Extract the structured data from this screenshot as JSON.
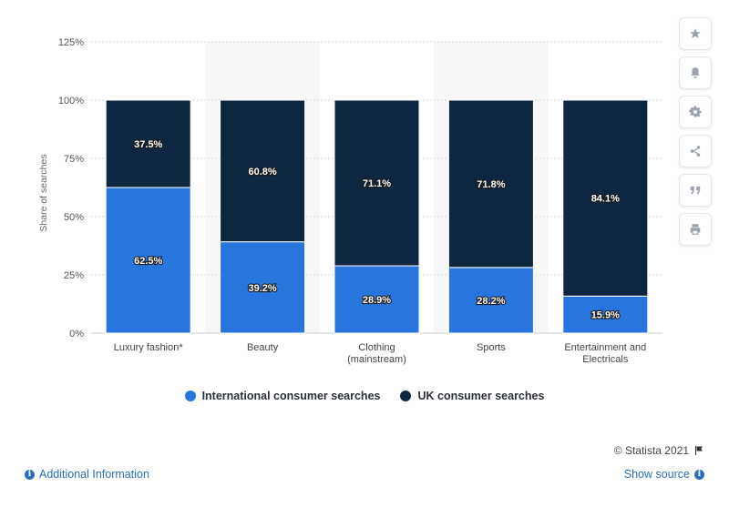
{
  "chart_data": {
    "type": "bar",
    "stacked": true,
    "categories": [
      "Luxury fashion*",
      "Beauty",
      "Clothing (mainstream)",
      "Sports",
      "Entertainment and Electricals"
    ],
    "category_lines": [
      [
        "Luxury fashion*"
      ],
      [
        "Beauty"
      ],
      [
        "Clothing",
        "(mainstream)"
      ],
      [
        "Sports"
      ],
      [
        "Entertainment and",
        "Electricals"
      ]
    ],
    "series": [
      {
        "name": "International consumer searches",
        "color": "#2876dd",
        "values": [
          62.5,
          39.2,
          28.9,
          28.2,
          15.9
        ]
      },
      {
        "name": "UK consumer searches",
        "color": "#0f2640",
        "values": [
          37.5,
          60.8,
          71.1,
          71.8,
          84.1
        ]
      }
    ],
    "value_labels": [
      [
        "62.5%",
        "39.2%",
        "28.9%",
        "28.2%",
        "15.9%"
      ],
      [
        "37.5%",
        "60.8%",
        "71.1%",
        "71.8%",
        "84.1%"
      ]
    ],
    "ylabel": "Share of searches",
    "ylim": [
      0,
      125
    ],
    "yticks": [
      0,
      25,
      50,
      75,
      100,
      125
    ],
    "ytick_labels": [
      "0%",
      "25%",
      "50%",
      "75%",
      "100%",
      "125%"
    ],
    "grid": true,
    "legend_position": "bottom"
  },
  "legend": {
    "items": [
      {
        "label": "International consumer searches",
        "color": "#2876dd"
      },
      {
        "label": "UK consumer searches",
        "color": "#0f2640"
      }
    ]
  },
  "sidebar": {
    "icons": [
      "star-icon",
      "bell-icon",
      "gear-icon",
      "share-icon",
      "quote-icon",
      "print-icon"
    ]
  },
  "footer": {
    "credit": "© Statista 2021",
    "additional_info": "Additional Information",
    "show_source": "Show source"
  }
}
